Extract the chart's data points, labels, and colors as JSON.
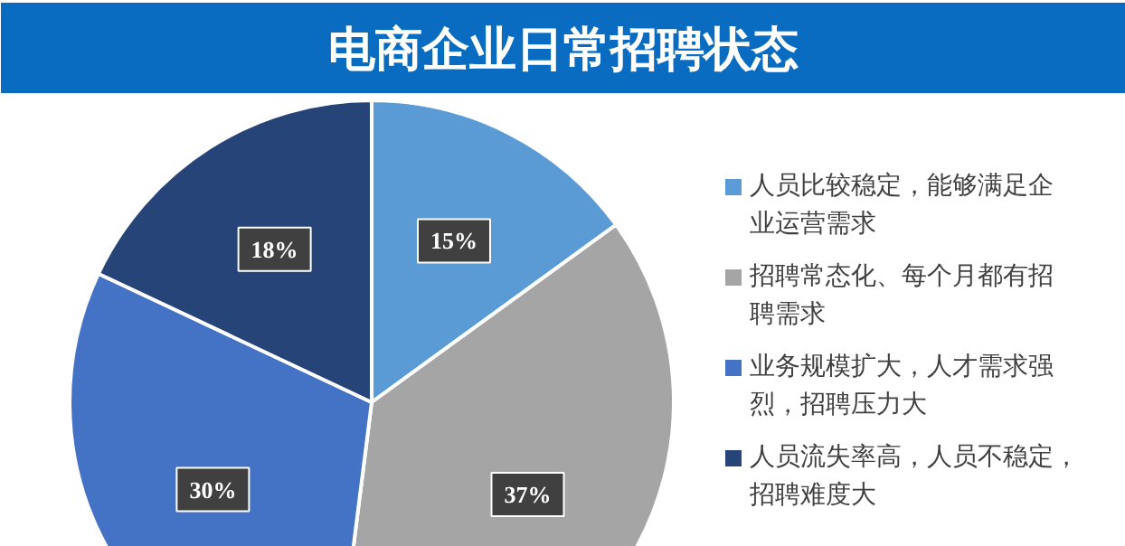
{
  "chart_data": {
    "type": "pie",
    "title": "电商企业日常招聘状态",
    "categories": [
      "人员比较稳定，能够满足企业运营需求",
      "招聘常态化、每个月都有招聘需求",
      "业务规模扩大，人才需求强烈，招聘压力大",
      "人员流失率高，人员不稳定，招聘难度大"
    ],
    "values": [
      15,
      37,
      30,
      18
    ],
    "value_labels": [
      "15%",
      "37%",
      "30%",
      "18%"
    ],
    "colors": [
      "#5b9bd5",
      "#a5a5a5",
      "#4472c4",
      "#264478"
    ],
    "legend": "right"
  }
}
